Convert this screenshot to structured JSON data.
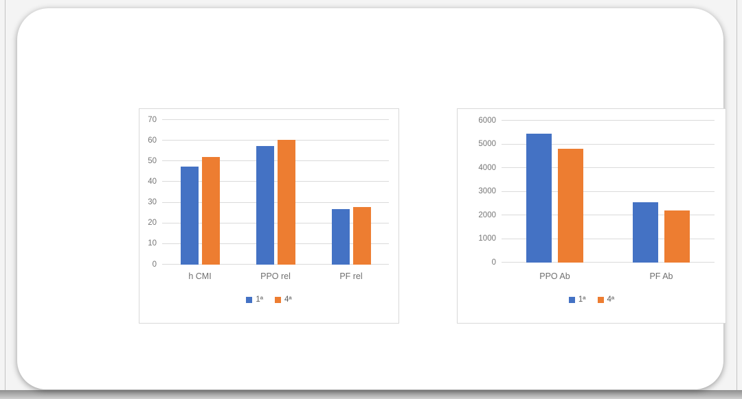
{
  "window": {
    "background_color": "#f4f4f4",
    "bottom_shadow_color": "#8f8f8f",
    "slide_background_color": "#ffffff"
  },
  "accent_colors": {
    "series_blue": "#4472c4",
    "series_orange": "#ed7d31",
    "gridline_gray": "#dadada",
    "axis_text_gray": "#757575"
  },
  "chart_data": [
    {
      "type": "bar",
      "title": "",
      "xlabel": "",
      "ylabel": "",
      "categories": [
        "h CMI",
        "PPO rel",
        "PF rel"
      ],
      "series": [
        {
          "name": "1ª",
          "color": "#4472c4",
          "values": [
            47.5,
            57.5,
            27
          ]
        },
        {
          "name": "4ª",
          "color": "#ed7d31",
          "values": [
            52,
            60.5,
            28
          ]
        }
      ],
      "ylim": [
        0,
        70
      ],
      "ytick_step": 10,
      "yticks": [
        0,
        10,
        20,
        30,
        40,
        50,
        60,
        70
      ],
      "grid": true,
      "legend_position": "bottom"
    },
    {
      "type": "bar",
      "title": "",
      "xlabel": "",
      "ylabel": "",
      "categories": [
        "PPO Ab",
        "PF Ab"
      ],
      "series": [
        {
          "name": "1ª",
          "color": "#4472c4",
          "values": [
            5450,
            2550
          ]
        },
        {
          "name": "4ª",
          "color": "#ed7d31",
          "values": [
            4800,
            2200
          ]
        }
      ],
      "ylim": [
        0,
        6000
      ],
      "ytick_step": 1000,
      "yticks": [
        0,
        1000,
        2000,
        3000,
        4000,
        5000,
        6000
      ],
      "grid": true,
      "legend_position": "bottom"
    }
  ]
}
